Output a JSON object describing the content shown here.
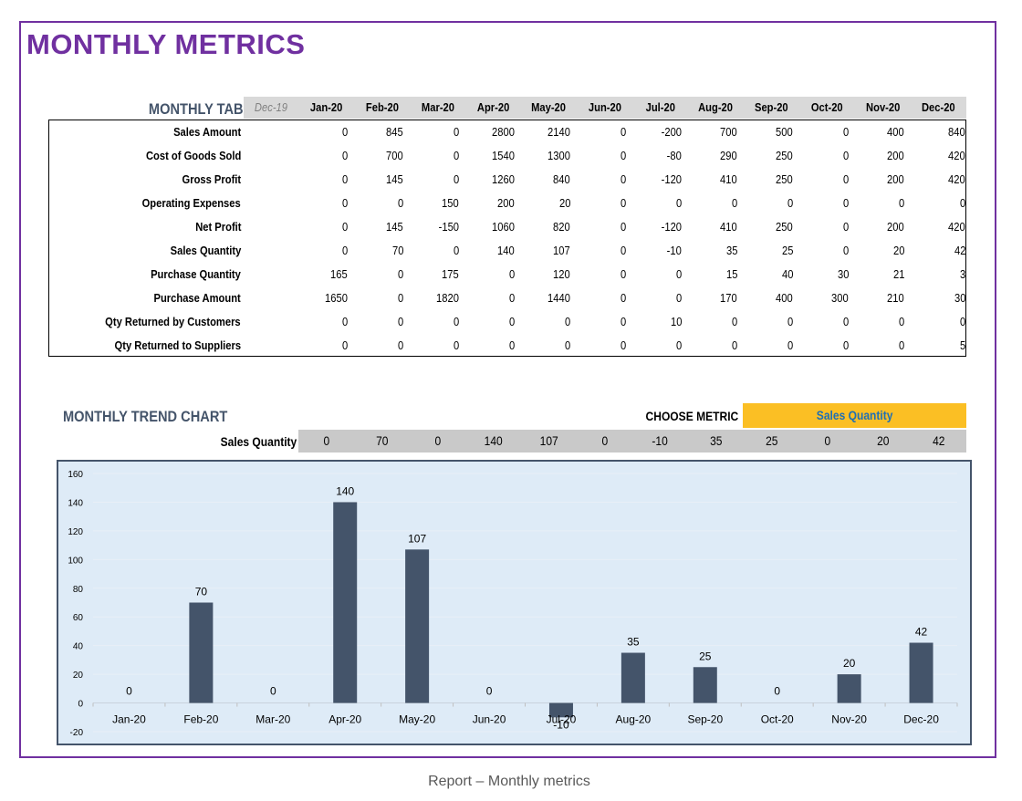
{
  "page_title": "MONTHLY METRICS",
  "caption": "Report – Monthly metrics",
  "monthly_table": {
    "title": "MONTHLY TABLE",
    "prev_month": "Dec-19",
    "months": [
      "Jan-20",
      "Feb-20",
      "Mar-20",
      "Apr-20",
      "May-20",
      "Jun-20",
      "Jul-20",
      "Aug-20",
      "Sep-20",
      "Oct-20",
      "Nov-20",
      "Dec-20"
    ],
    "rows": [
      {
        "label": "Sales Amount",
        "values": [
          "0",
          "845",
          "0",
          "2800",
          "2140",
          "0",
          "-200",
          "700",
          "500",
          "0",
          "400",
          "840"
        ]
      },
      {
        "label": "Cost of Goods Sold",
        "values": [
          "0",
          "700",
          "0",
          "1540",
          "1300",
          "0",
          "-80",
          "290",
          "250",
          "0",
          "200",
          "420"
        ]
      },
      {
        "label": "Gross Profit",
        "values": [
          "0",
          "145",
          "0",
          "1260",
          "840",
          "0",
          "-120",
          "410",
          "250",
          "0",
          "200",
          "420"
        ]
      },
      {
        "label": "Operating Expenses",
        "values": [
          "0",
          "0",
          "150",
          "200",
          "20",
          "0",
          "0",
          "0",
          "0",
          "0",
          "0",
          "0"
        ]
      },
      {
        "label": "Net Profit",
        "values": [
          "0",
          "145",
          "-150",
          "1060",
          "820",
          "0",
          "-120",
          "410",
          "250",
          "0",
          "200",
          "420"
        ]
      },
      {
        "label": "Sales Quantity",
        "values": [
          "0",
          "70",
          "0",
          "140",
          "107",
          "0",
          "-10",
          "35",
          "25",
          "0",
          "20",
          "42"
        ]
      },
      {
        "label": "Purchase Quantity",
        "values": [
          "165",
          "0",
          "175",
          "0",
          "120",
          "0",
          "0",
          "15",
          "40",
          "30",
          "21",
          "3"
        ]
      },
      {
        "label": "Purchase Amount",
        "values": [
          "1650",
          "0",
          "1820",
          "0",
          "1440",
          "0",
          "0",
          "170",
          "400",
          "300",
          "210",
          "30"
        ]
      },
      {
        "label": "Qty Returned by Customers",
        "values": [
          "0",
          "0",
          "0",
          "0",
          "0",
          "0",
          "10",
          "0",
          "0",
          "0",
          "0",
          "0"
        ]
      },
      {
        "label": "Qty Returned to Suppliers",
        "values": [
          "0",
          "0",
          "0",
          "0",
          "0",
          "0",
          "0",
          "0",
          "0",
          "0",
          "0",
          "5"
        ]
      }
    ]
  },
  "trend_chart": {
    "title": "MONTHLY TREND CHART",
    "choose_label": "CHOOSE METRIC",
    "selected_metric": "Sales Quantity",
    "series_label": "Sales Quantity",
    "series_values": [
      "0",
      "70",
      "0",
      "140",
      "107",
      "0",
      "-10",
      "35",
      "25",
      "0",
      "20",
      "42"
    ],
    "colors": {
      "bar": "#44546a",
      "plot_bg": "#deebf7",
      "selector_bg": "#fbbf24",
      "selector_text": "#1f6fb5"
    }
  },
  "chart_data": {
    "type": "bar",
    "categories": [
      "Jan-20",
      "Feb-20",
      "Mar-20",
      "Apr-20",
      "May-20",
      "Jun-20",
      "Jul-20",
      "Aug-20",
      "Sep-20",
      "Oct-20",
      "Nov-20",
      "Dec-20"
    ],
    "values": [
      0,
      70,
      0,
      140,
      107,
      0,
      -10,
      35,
      25,
      0,
      20,
      42
    ],
    "title": "",
    "xlabel": "",
    "ylabel": "",
    "ylim": [
      -20,
      160
    ],
    "yticks": [
      -20,
      0,
      20,
      40,
      60,
      80,
      100,
      120,
      140,
      160
    ],
    "grid": true,
    "data_labels": true
  }
}
